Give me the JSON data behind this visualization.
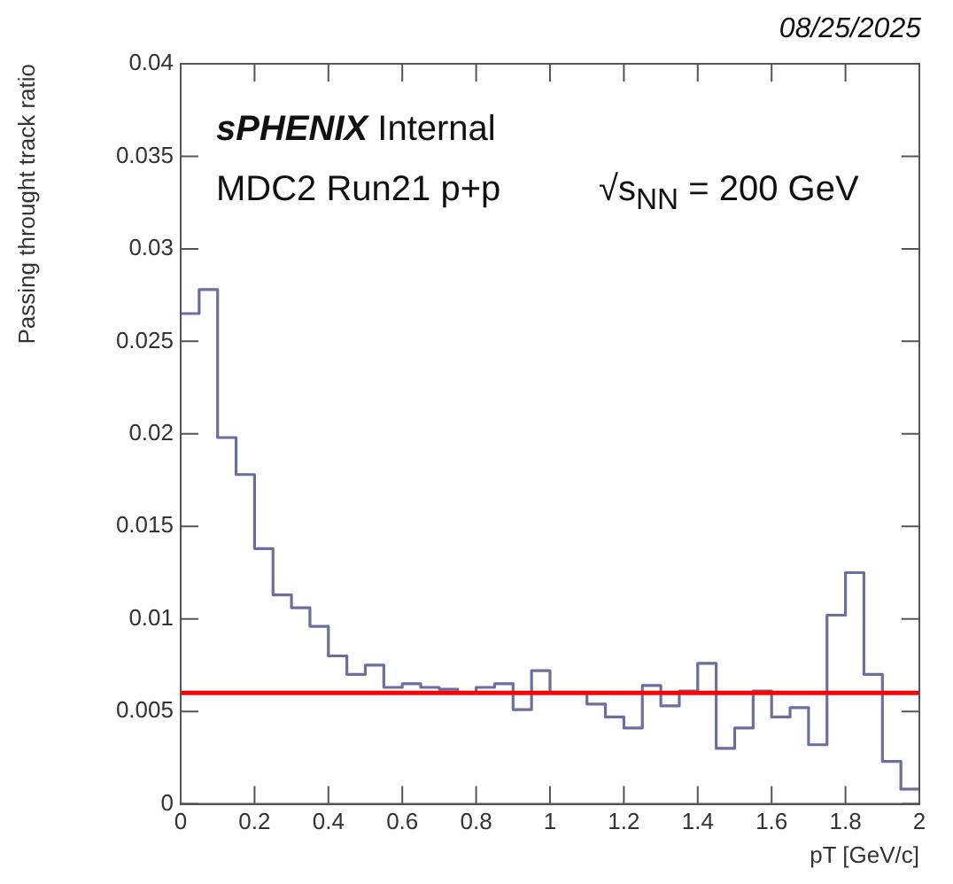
{
  "chart_data": {
    "type": "histogram",
    "xlabel": "pT [GeV/c]",
    "ylabel": "Passing throught track ratio",
    "annotations": [
      "08/25/2025",
      "sPHENIX Internal",
      "MDC2 Run21 p+p",
      "√s$_{NN}$ = 200 GeV"
    ],
    "bins": [
      0,
      0.05,
      0.1,
      0.15,
      0.2,
      0.25,
      0.3,
      0.35,
      0.4,
      0.45,
      0.5,
      0.55,
      0.6,
      0.65,
      0.7,
      0.75,
      0.8,
      0.85,
      0.9,
      0.95,
      1.0,
      1.05,
      1.1,
      1.15,
      1.2,
      1.25,
      1.3,
      1.35,
      1.4,
      1.45,
      1.5,
      1.55,
      1.6,
      1.65,
      1.7,
      1.75,
      1.8,
      1.85,
      1.9,
      1.95,
      2.0
    ],
    "values": [
      0.0265,
      0.0278,
      0.0198,
      0.0178,
      0.0138,
      0.0113,
      0.0106,
      0.0096,
      0.008,
      0.007,
      0.0075,
      0.0063,
      0.0065,
      0.0063,
      0.0062,
      0.006,
      0.0063,
      0.0065,
      0.0051,
      0.0072,
      0.006,
      0.006,
      0.0054,
      0.0047,
      0.0041,
      0.0064,
      0.0053,
      0.0061,
      0.0076,
      0.003,
      0.0041,
      0.0061,
      0.0047,
      0.0052,
      0.0032,
      0.0102,
      0.0125,
      0.007,
      0.0023,
      0.0008
    ],
    "color": "#6e6e9e",
    "xlim": [
      0,
      2
    ],
    "xticks": [
      0,
      0.2,
      0.4,
      0.6,
      0.8,
      1,
      1.2,
      1.4,
      1.6,
      1.8,
      2
    ],
    "ylim": [
      0,
      0.04
    ],
    "yticks": [
      0,
      0.005,
      0.01,
      0.015,
      0.02,
      0.025,
      0.03,
      0.035,
      0.04
    ],
    "ref_lines": [
      {
        "axis": "y",
        "value": 0.006,
        "color": "#ff0000"
      }
    ],
    "grid": false,
    "legend": false
  }
}
